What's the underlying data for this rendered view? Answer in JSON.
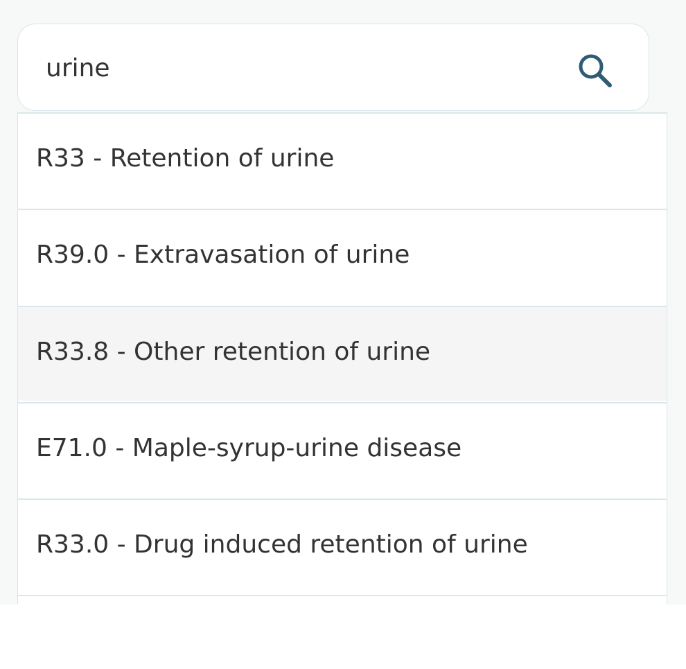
{
  "search": {
    "value": "urine",
    "icon": "search-icon",
    "icon_color": "#2f5b74"
  },
  "results": [
    {
      "label": "R33 - Retention of urine"
    },
    {
      "label": "R39.0 - Extravasation of urine"
    },
    {
      "label": "R33.8 - Other retention of urine",
      "highlighted": true
    },
    {
      "label": "E71.0 - Maple-syrup-urine disease"
    },
    {
      "label": "R33.0 - Drug induced retention of urine"
    }
  ],
  "colors": {
    "text": "#333333",
    "border": "#d9e6ea",
    "highlight": "#f5f5f5"
  }
}
